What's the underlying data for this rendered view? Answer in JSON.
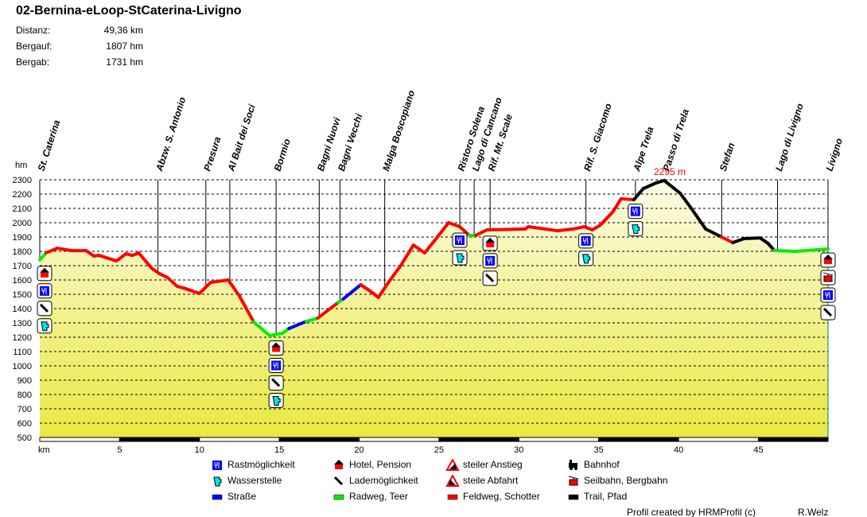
{
  "header": {
    "title": "02-Bernina-eLoop-StCaterina-Livigno",
    "stats": [
      {
        "label": "Distanz:",
        "value": "49,36 km"
      },
      {
        "label": "Bergauf:",
        "value": "1807 hm"
      },
      {
        "label": "Bergab:",
        "value": "1731 hm"
      }
    ]
  },
  "chart_data": {
    "type": "area",
    "ylabel": "hm",
    "xlabel": "km",
    "xlim": [
      0,
      49.36
    ],
    "ylim": [
      500,
      2300
    ],
    "yticks": [
      2300,
      2200,
      2100,
      2000,
      1900,
      1800,
      1700,
      1600,
      1500,
      1400,
      1300,
      1200,
      1100,
      1000,
      900,
      800,
      700,
      600,
      500
    ],
    "xticks": [
      5,
      10,
      15,
      20,
      25,
      30,
      35,
      40,
      45
    ],
    "grid": "horizontal dashed",
    "max_label": "2295 m",
    "max_km": 39.1,
    "colors": {
      "road": "#0000ff",
      "paved": "#00ee00",
      "gravel": "#ff0000",
      "trail": "#000000",
      "fill_top": "#fcfce6",
      "fill_bottom": "#e9e840"
    },
    "profile": [
      {
        "km": 0,
        "ele": 1740
      },
      {
        "km": 0.4,
        "ele": 1790,
        "s": "paved"
      },
      {
        "km": 1.1,
        "ele": 1822,
        "s": "gravel"
      },
      {
        "km": 2.0,
        "ele": 1805,
        "s": "gravel"
      },
      {
        "km": 2.9,
        "ele": 1805,
        "s": "gravel"
      },
      {
        "km": 3.4,
        "ele": 1767,
        "s": "gravel"
      },
      {
        "km": 3.7,
        "ele": 1772,
        "s": "gravel"
      },
      {
        "km": 4.8,
        "ele": 1733,
        "s": "gravel"
      },
      {
        "km": 5.4,
        "ele": 1783,
        "s": "gravel"
      },
      {
        "km": 5.8,
        "ele": 1772,
        "s": "gravel"
      },
      {
        "km": 6.2,
        "ele": 1789,
        "s": "gravel"
      },
      {
        "km": 7.0,
        "ele": 1683,
        "s": "gravel"
      },
      {
        "km": 7.5,
        "ele": 1644,
        "s": "gravel"
      },
      {
        "km": 8.0,
        "ele": 1617,
        "s": "gravel"
      },
      {
        "km": 8.6,
        "ele": 1556,
        "s": "gravel"
      },
      {
        "km": 9.0,
        "ele": 1544,
        "s": "gravel"
      },
      {
        "km": 10.0,
        "ele": 1506,
        "s": "gravel"
      },
      {
        "km": 10.7,
        "ele": 1583,
        "s": "gravel"
      },
      {
        "km": 11.8,
        "ele": 1600,
        "s": "gravel"
      },
      {
        "km": 12.5,
        "ele": 1489,
        "s": "gravel"
      },
      {
        "km": 13.4,
        "ele": 1306,
        "s": "gravel"
      },
      {
        "km": 14.4,
        "ele": 1211,
        "s": "paved"
      },
      {
        "km": 15.2,
        "ele": 1228,
        "s": "paved"
      },
      {
        "km": 15.6,
        "ele": 1261,
        "s": "paved"
      },
      {
        "km": 16.7,
        "ele": 1311,
        "s": "road"
      },
      {
        "km": 17.4,
        "ele": 1333,
        "s": "paved"
      },
      {
        "km": 18.7,
        "ele": 1444,
        "s": "gravel"
      },
      {
        "km": 19.0,
        "ele": 1467,
        "s": "paved"
      },
      {
        "km": 20.1,
        "ele": 1567,
        "s": "road"
      },
      {
        "km": 20.9,
        "ele": 1506,
        "s": "gravel"
      },
      {
        "km": 21.2,
        "ele": 1478,
        "s": "gravel"
      },
      {
        "km": 21.8,
        "ele": 1578,
        "s": "gravel"
      },
      {
        "km": 22.6,
        "ele": 1700,
        "s": "gravel"
      },
      {
        "km": 23.4,
        "ele": 1844,
        "s": "gravel"
      },
      {
        "km": 24.1,
        "ele": 1789,
        "s": "gravel"
      },
      {
        "km": 24.9,
        "ele": 1900,
        "s": "gravel"
      },
      {
        "km": 25.6,
        "ele": 2000,
        "s": "gravel"
      },
      {
        "km": 26.3,
        "ele": 1972,
        "s": "gravel"
      },
      {
        "km": 26.9,
        "ele": 1911,
        "s": "gravel"
      },
      {
        "km": 27.3,
        "ele": 1911,
        "s": "paved"
      },
      {
        "km": 28.0,
        "ele": 1950,
        "s": "gravel"
      },
      {
        "km": 30.4,
        "ele": 1956,
        "s": "gravel"
      },
      {
        "km": 30.6,
        "ele": 1972,
        "s": "gravel"
      },
      {
        "km": 32.4,
        "ele": 1944,
        "s": "gravel"
      },
      {
        "km": 33.4,
        "ele": 1956,
        "s": "gravel"
      },
      {
        "km": 34.1,
        "ele": 1972,
        "s": "gravel"
      },
      {
        "km": 34.6,
        "ele": 1950,
        "s": "gravel"
      },
      {
        "km": 35.1,
        "ele": 1983,
        "s": "gravel"
      },
      {
        "km": 35.9,
        "ele": 2078,
        "s": "gravel"
      },
      {
        "km": 36.4,
        "ele": 2167,
        "s": "gravel"
      },
      {
        "km": 37.2,
        "ele": 2161,
        "s": "gravel"
      },
      {
        "km": 37.8,
        "ele": 2239,
        "s": "trail"
      },
      {
        "km": 38.6,
        "ele": 2278,
        "s": "trail"
      },
      {
        "km": 39.1,
        "ele": 2295,
        "s": "trail"
      },
      {
        "km": 40.1,
        "ele": 2206,
        "s": "trail"
      },
      {
        "km": 40.8,
        "ele": 2100,
        "s": "trail"
      },
      {
        "km": 41.7,
        "ele": 1956,
        "s": "trail"
      },
      {
        "km": 42.7,
        "ele": 1900,
        "s": "trail"
      },
      {
        "km": 43.4,
        "ele": 1861,
        "s": "gravel"
      },
      {
        "km": 44.1,
        "ele": 1889,
        "s": "trail"
      },
      {
        "km": 45.1,
        "ele": 1894,
        "s": "trail"
      },
      {
        "km": 45.6,
        "ele": 1856,
        "s": "trail"
      },
      {
        "km": 46.0,
        "ele": 1806,
        "s": "trail"
      },
      {
        "km": 47.3,
        "ele": 1800,
        "s": "paved"
      },
      {
        "km": 49.36,
        "ele": 1817,
        "s": "paved"
      }
    ],
    "waypoints": [
      {
        "name": "St. Caterina",
        "km": 0,
        "icons": [
          "hotel",
          "rest",
          "charging",
          "water"
        ]
      },
      {
        "name": "Abzw. S. Antonio",
        "km": 7.4,
        "icons": []
      },
      {
        "name": "Presura",
        "km": 10.4,
        "icons": []
      },
      {
        "name": "Al Bait dei Soci",
        "km": 11.9,
        "icons": []
      },
      {
        "name": "Bormio",
        "km": 14.8,
        "icons": [
          "hotel",
          "rest",
          "charging",
          "water"
        ]
      },
      {
        "name": "Bagni Nuovi",
        "km": 17.5,
        "icons": []
      },
      {
        "name": "Bagni Vecchi",
        "km": 18.8,
        "icons": []
      },
      {
        "name": "Malga Boscopiano",
        "km": 21.6,
        "icons": []
      },
      {
        "name": "Ristoro Solena",
        "km": 26.3,
        "icons": [
          "rest",
          "water"
        ]
      },
      {
        "name": "Lago di Cancano",
        "km": 27.2,
        "icons": []
      },
      {
        "name": "Rif. Mt. Scale",
        "km": 28.2,
        "icons": [
          "hotel",
          "rest",
          "charging"
        ]
      },
      {
        "name": "Rif. S. Giacomo",
        "km": 34.2,
        "icons": [
          "rest",
          "water"
        ]
      },
      {
        "name": "Alpe Trela",
        "km": 37.3,
        "icons": [
          "rest",
          "water"
        ]
      },
      {
        "name": "Passo di Trela",
        "km": 39.15,
        "icons": []
      },
      {
        "name": "Stefan",
        "km": 42.7,
        "icons": []
      },
      {
        "name": "Lago di Livigno",
        "km": 46.2,
        "icons": []
      },
      {
        "name": "Livigno",
        "km": 49.36,
        "icons": [
          "hotel",
          "cablecar",
          "rest",
          "charging"
        ]
      }
    ]
  },
  "legend": [
    {
      "icon": "rest",
      "label": "Rastmöglichkeit"
    },
    {
      "icon": "water",
      "label": "Wasserstelle"
    },
    {
      "icon": "road",
      "label": "Straße"
    },
    {
      "icon": "hotel",
      "label": "Hotel, Pension"
    },
    {
      "icon": "charging",
      "label": "Lademöglichkeit"
    },
    {
      "icon": "paved",
      "label": "Radweg, Teer"
    },
    {
      "icon": "steep-up",
      "label": "steiler Anstieg"
    },
    {
      "icon": "steep-down",
      "label": "steile Abfahrt"
    },
    {
      "icon": "gravel",
      "label": "Feldweg, Schotter"
    },
    {
      "icon": "train",
      "label": "Bahnhof"
    },
    {
      "icon": "cablecar",
      "label": "Seilbahn, Bergbahn"
    },
    {
      "icon": "trail",
      "label": "Trail, Pfad"
    }
  ],
  "footer": {
    "credit": "Profil created by HRMProfil (c)",
    "author": "R.Welz"
  }
}
